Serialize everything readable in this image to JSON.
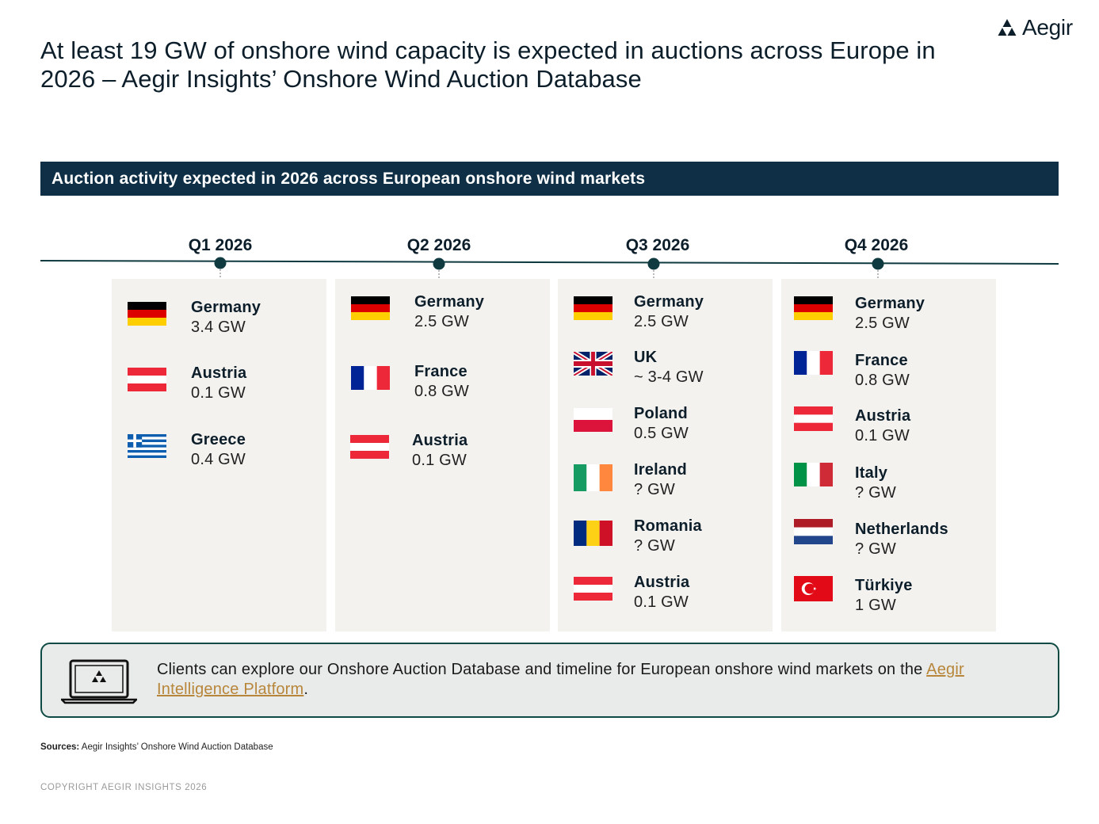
{
  "title": "At least 19 GW of onshore wind capacity is expected in auctions across Europe in 2026 – Aegir Insights’ Onshore Wind Auction Database",
  "logo": {
    "text": "Aegir",
    "icon": "triangle-cluster-icon"
  },
  "banner": "Auction activity expected in 2026 across European onshore wind markets",
  "colors": {
    "navy": "#0e2f45",
    "teal": "#0f4a44",
    "panel": "#f4f2ef",
    "link": "#b8863b"
  },
  "quarters": [
    {
      "label": "Q1 2026",
      "entries": [
        {
          "country": "Germany",
          "value": "3.4 GW",
          "flag": "germany-flag-icon"
        },
        {
          "country": "Austria",
          "value": "0.1 GW",
          "flag": "austria-flag-icon"
        },
        {
          "country": "Greece",
          "value": "0.4 GW",
          "flag": "greece-flag-icon"
        }
      ]
    },
    {
      "label": "Q2 2026",
      "entries": [
        {
          "country": "Germany",
          "value": "2.5 GW",
          "flag": "germany-flag-icon"
        },
        {
          "country": "France",
          "value": "0.8 GW",
          "flag": "france-flag-icon"
        },
        {
          "country": "Austria",
          "value": "0.1 GW",
          "flag": "austria-flag-icon"
        }
      ]
    },
    {
      "label": "Q3 2026",
      "entries": [
        {
          "country": "Germany",
          "value": "2.5 GW",
          "flag": "germany-flag-icon"
        },
        {
          "country": "UK",
          "value": "~ 3-4 GW",
          "flag": "uk-flag-icon"
        },
        {
          "country": "Poland",
          "value": "0.5 GW",
          "flag": "poland-flag-icon"
        },
        {
          "country": "Ireland",
          "value": "? GW",
          "flag": "ireland-flag-icon"
        },
        {
          "country": "Romania",
          "value": "? GW",
          "flag": "romania-flag-icon"
        },
        {
          "country": "Austria",
          "value": "0.1 GW",
          "flag": "austria-flag-icon"
        }
      ]
    },
    {
      "label": "Q4 2026",
      "entries": [
        {
          "country": "Germany",
          "value": "2.5 GW",
          "flag": "germany-flag-icon"
        },
        {
          "country": "France",
          "value": "0.8 GW",
          "flag": "france-flag-icon"
        },
        {
          "country": "Austria",
          "value": "0.1 GW",
          "flag": "austria-flag-icon"
        },
        {
          "country": "Italy",
          "value": "? GW",
          "flag": "italy-flag-icon"
        },
        {
          "country": "Netherlands",
          "value": "? GW",
          "flag": "netherlands-flag-icon"
        },
        {
          "country": "Türkiye",
          "value": "1 GW",
          "flag": "turkey-flag-icon"
        }
      ]
    }
  ],
  "callout": {
    "icon": "laptop-icon",
    "text_before": "Clients can explore our Onshore Auction Database and timeline for European onshore wind markets on the ",
    "link": "Aegir Intelligence Platform",
    "text_after": "."
  },
  "sources": {
    "label": "Sources:",
    "text": " Aegir Insights’ Onshore Wind Auction Database"
  },
  "copyright": "COPYRIGHT AEGIR INSIGHTS 2026"
}
